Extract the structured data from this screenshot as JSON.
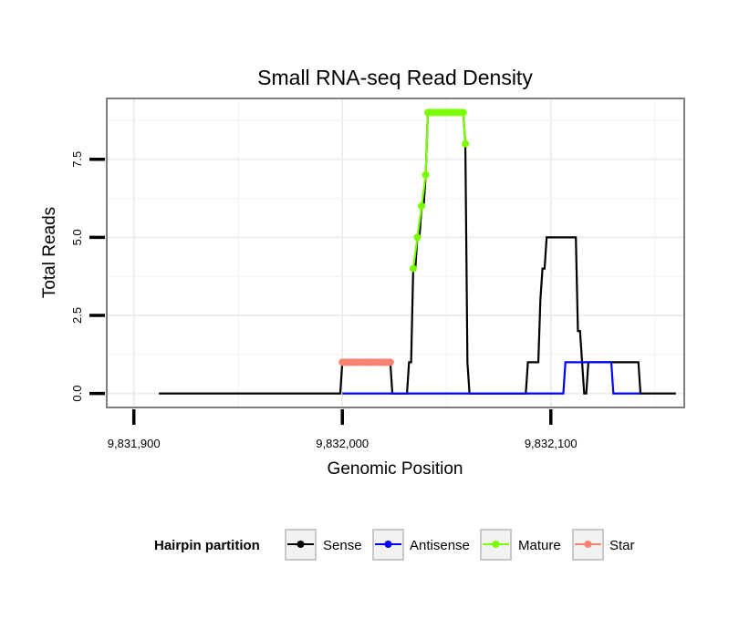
{
  "chart_data": {
    "type": "line",
    "title": "Small RNA-seq Read Density",
    "xlabel": "Genomic Position",
    "ylabel": "Total Reads",
    "xlim": [
      9831887,
      9832164
    ],
    "ylim": [
      -0.45,
      9.45
    ],
    "x_ticks": [
      9831900,
      9832000,
      9832100
    ],
    "x_tick_labels": [
      "9,831,900",
      "9,832,000",
      "9,832,100"
    ],
    "y_ticks": [
      0.0,
      2.5,
      5.0,
      7.5
    ],
    "y_tick_labels": [
      "0.0",
      "2.5",
      "5.0",
      "7.5"
    ],
    "grid": true,
    "legend": {
      "title": "Hairpin partition",
      "position": "bottom",
      "entries": [
        "Sense",
        "Antisense",
        "Mature",
        "Star"
      ]
    },
    "series": [
      {
        "name": "Sense",
        "color": "#000000",
        "points": [
          [
            9831912,
            0
          ],
          [
            9831999,
            0
          ],
          [
            9832000,
            1
          ],
          [
            9832023,
            1
          ],
          [
            9832024,
            0
          ],
          [
            9832031,
            0
          ],
          [
            9832032,
            1
          ],
          [
            9832033,
            1
          ],
          [
            9832034,
            4
          ],
          [
            9832035,
            4
          ],
          [
            9832036,
            5
          ],
          [
            9832037,
            5
          ],
          [
            9832038,
            6
          ],
          [
            9832039,
            6
          ],
          [
            9832040,
            7
          ],
          [
            9832041,
            9
          ],
          [
            9832058,
            9
          ],
          [
            9832059,
            8
          ],
          [
            9832060,
            1
          ],
          [
            9832061,
            0
          ],
          [
            9832088,
            0
          ],
          [
            9832089,
            1
          ],
          [
            9832094,
            1
          ],
          [
            9832095,
            3
          ],
          [
            9832096,
            4
          ],
          [
            9832097,
            4
          ],
          [
            9832098,
            5
          ],
          [
            9832112,
            5
          ],
          [
            9832113,
            2
          ],
          [
            9832114,
            2
          ],
          [
            9832116,
            0
          ],
          [
            9832117,
            0
          ],
          [
            9832118,
            1
          ],
          [
            9832142,
            1
          ],
          [
            9832143,
            0
          ],
          [
            9832160,
            0
          ]
        ]
      },
      {
        "name": "Antisense",
        "color": "#0000ff",
        "points": [
          [
            9832000,
            0
          ],
          [
            9832106,
            0
          ],
          [
            9832107,
            1
          ],
          [
            9832129,
            1
          ],
          [
            9832130,
            0
          ],
          [
            9832143,
            0
          ]
        ]
      },
      {
        "name": "Mature",
        "color": "#7cfc00",
        "points": [
          [
            9832034,
            4
          ],
          [
            9832036,
            5
          ],
          [
            9832038,
            6
          ],
          [
            9832040,
            7
          ],
          [
            9832041,
            9
          ],
          [
            9832042,
            9
          ],
          [
            9832043,
            9
          ],
          [
            9832044,
            9
          ],
          [
            9832045,
            9
          ],
          [
            9832046,
            9
          ],
          [
            9832047,
            9
          ],
          [
            9832048,
            9
          ],
          [
            9832049,
            9
          ],
          [
            9832050,
            9
          ],
          [
            9832051,
            9
          ],
          [
            9832052,
            9
          ],
          [
            9832053,
            9
          ],
          [
            9832054,
            9
          ],
          [
            9832055,
            9
          ],
          [
            9832056,
            9
          ],
          [
            9832057,
            9
          ],
          [
            9832058,
            9
          ],
          [
            9832059,
            8
          ]
        ]
      },
      {
        "name": "Star",
        "color": "#fa8072",
        "points": [
          [
            9832000,
            1
          ],
          [
            9832001,
            1
          ],
          [
            9832002,
            1
          ],
          [
            9832003,
            1
          ],
          [
            9832004,
            1
          ],
          [
            9832005,
            1
          ],
          [
            9832006,
            1
          ],
          [
            9832007,
            1
          ],
          [
            9832008,
            1
          ],
          [
            9832009,
            1
          ],
          [
            9832010,
            1
          ],
          [
            9832011,
            1
          ],
          [
            9832012,
            1
          ],
          [
            9832013,
            1
          ],
          [
            9832014,
            1
          ],
          [
            9832015,
            1
          ],
          [
            9832016,
            1
          ],
          [
            9832017,
            1
          ],
          [
            9832018,
            1
          ],
          [
            9832019,
            1
          ],
          [
            9832020,
            1
          ],
          [
            9832021,
            1
          ],
          [
            9832022,
            1
          ],
          [
            9832023,
            1
          ]
        ]
      }
    ]
  }
}
